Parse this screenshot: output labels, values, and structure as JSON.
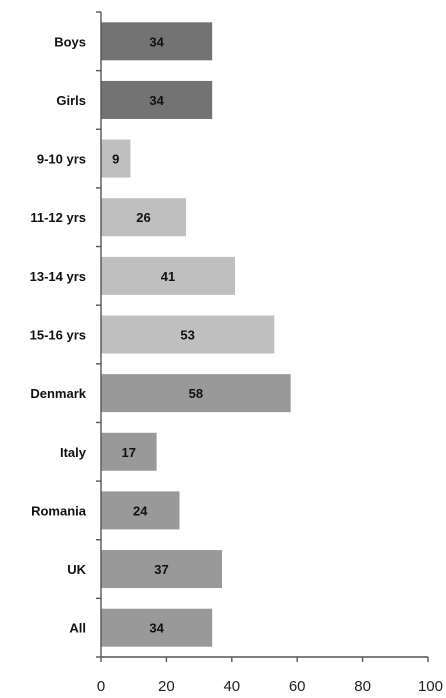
{
  "chart_data": {
    "type": "bar",
    "orientation": "horizontal",
    "categories": [
      "Boys",
      "Girls",
      "9-10 yrs",
      "11-12 yrs",
      "13-14 yrs",
      "15-16 yrs",
      "Denmark",
      "Italy",
      "Romania",
      "UK",
      "All"
    ],
    "values": [
      34,
      34,
      9,
      26,
      41,
      53,
      58,
      17,
      24,
      37,
      34
    ],
    "groups": [
      "gender",
      "gender",
      "age",
      "age",
      "age",
      "age",
      "country",
      "country",
      "country",
      "country",
      "total"
    ],
    "data_labels": [
      "34",
      "34",
      "9",
      "26",
      "41",
      "53",
      "58",
      "17",
      "24",
      "37",
      "34"
    ],
    "xlim": [
      0,
      100
    ],
    "xticks": [
      0,
      20,
      40,
      60,
      80,
      100
    ],
    "xtick_labels": [
      "0",
      "20",
      "40",
      "60",
      "80",
      "100"
    ],
    "grid": false,
    "colors": {
      "gender": "#737373",
      "age": "#bfbfbf",
      "country": "#999999",
      "total": "#999999",
      "axis": "#555555"
    }
  }
}
